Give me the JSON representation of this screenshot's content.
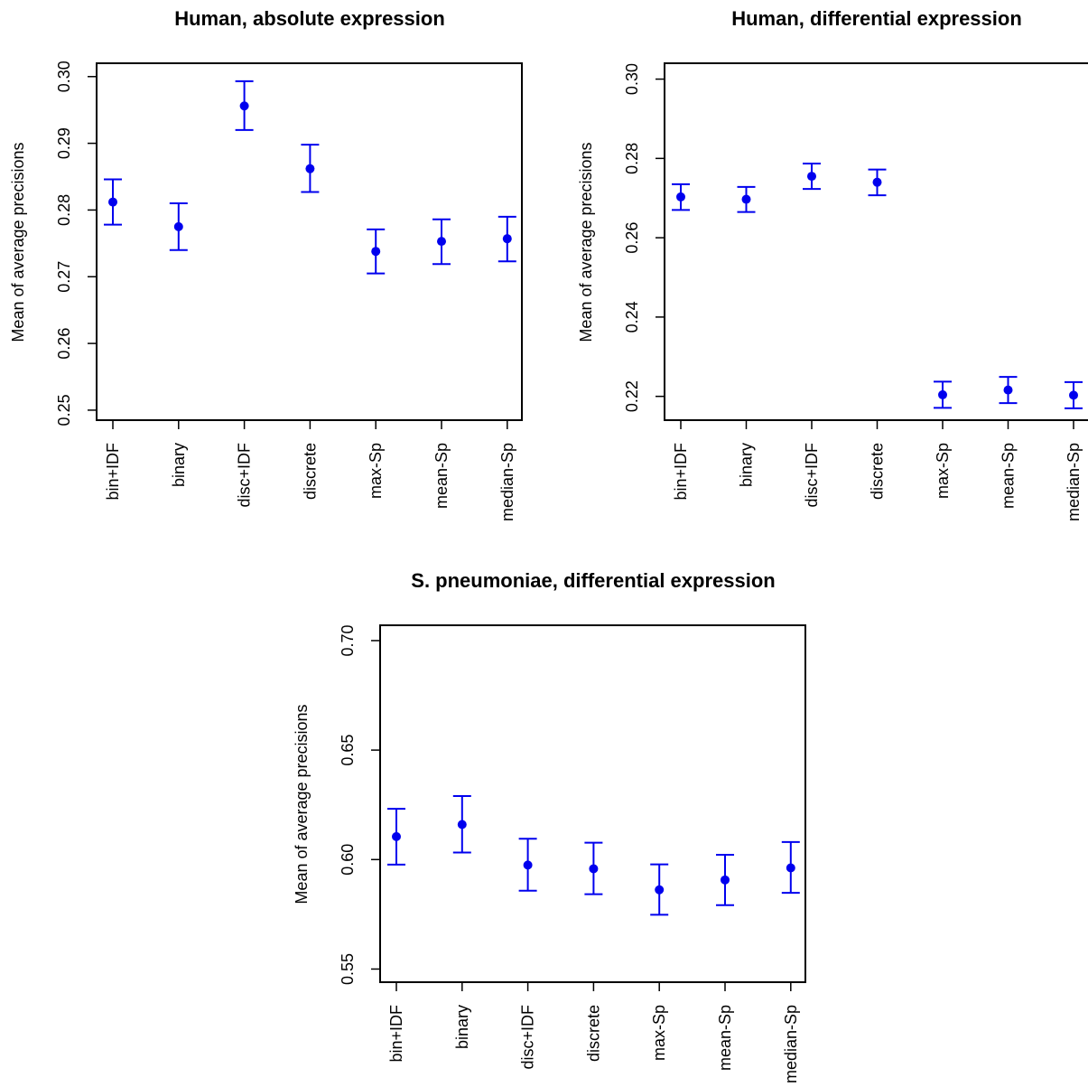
{
  "chart_data": [
    {
      "type": "scatter",
      "title": "Human, absolute expression",
      "ylabel": "Mean of average precisions",
      "xlabel": "",
      "categories": [
        "bin+IDF",
        "binary",
        "disc+IDF",
        "discrete",
        "max-Sp",
        "mean-Sp",
        "median-Sp"
      ],
      "values": [
        0.2812,
        0.2775,
        0.2956,
        0.2862,
        0.2738,
        0.2753,
        0.2757
      ],
      "error_low": [
        0.2778,
        0.274,
        0.292,
        0.2827,
        0.2705,
        0.2719,
        0.2723
      ],
      "error_high": [
        0.2846,
        0.281,
        0.2993,
        0.2898,
        0.2771,
        0.2786,
        0.279
      ],
      "yticks": [
        "0.25",
        "0.26",
        "0.27",
        "0.28",
        "0.29",
        "0.30"
      ],
      "ylim": [
        0.2485,
        0.302
      ],
      "color": "#0000ee",
      "grid": false
    },
    {
      "type": "scatter",
      "title": "Human, differential expression",
      "ylabel": "Mean of average precisions",
      "xlabel": "",
      "categories": [
        "bin+IDF",
        "binary",
        "disc+IDF",
        "discrete",
        "max-Sp",
        "mean-Sp",
        "median-Sp"
      ],
      "values": [
        0.2703,
        0.2697,
        0.2755,
        0.274,
        0.2204,
        0.2216,
        0.2203
      ],
      "error_low": [
        0.267,
        0.2665,
        0.2723,
        0.2707,
        0.2171,
        0.2183,
        0.217
      ],
      "error_high": [
        0.2735,
        0.2728,
        0.2787,
        0.2772,
        0.2237,
        0.2249,
        0.2236
      ],
      "yticks": [
        "0.22",
        "0.24",
        "0.26",
        "0.28",
        "0.30"
      ],
      "ylim": [
        0.214,
        0.304
      ],
      "color": "#0000ee",
      "grid": false
    },
    {
      "type": "scatter",
      "title": "S. pneumoniae, differential expression",
      "ylabel": "Mean of average precisions",
      "xlabel": "",
      "categories": [
        "bin+IDF",
        "binary",
        "disc+IDF",
        "discrete",
        "max-Sp",
        "mean-Sp",
        "median-Sp"
      ],
      "values": [
        0.6105,
        0.616,
        0.5975,
        0.5958,
        0.5862,
        0.5907,
        0.5962
      ],
      "error_low": [
        0.5977,
        0.6032,
        0.5858,
        0.5842,
        0.5748,
        0.5792,
        0.5848
      ],
      "error_high": [
        0.6232,
        0.629,
        0.6095,
        0.6077,
        0.5978,
        0.6022,
        0.608
      ],
      "yticks": [
        "0.55",
        "0.60",
        "0.65",
        "0.70"
      ],
      "ylim": [
        0.544,
        0.707
      ],
      "color": "#0000ee",
      "grid": false
    }
  ]
}
